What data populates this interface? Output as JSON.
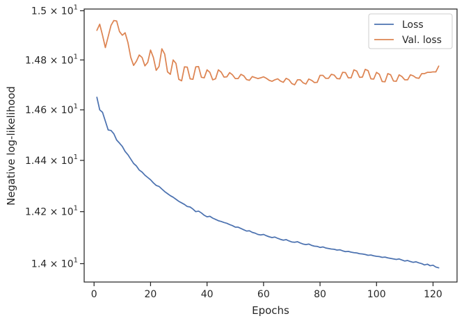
{
  "chart_data": {
    "type": "line",
    "xlabel": "Epochs",
    "ylabel": "Negative log-likelihood",
    "xlim": [
      -3.5,
      128.5
    ],
    "ylim": [
      13.93,
      15.007
    ],
    "y_scale": "log",
    "grid": false,
    "legend_position": "top-right",
    "x_ticks": [
      0,
      20,
      40,
      60,
      80,
      100,
      120
    ],
    "y_ticks": [
      {
        "value": 14.0,
        "mantissa": "1.4",
        "exponent": "1"
      },
      {
        "value": 14.2,
        "mantissa": "1.42",
        "exponent": "1"
      },
      {
        "value": 14.4,
        "mantissa": "1.44",
        "exponent": "1"
      },
      {
        "value": 14.6,
        "mantissa": "1.46",
        "exponent": "1"
      },
      {
        "value": 14.8,
        "mantissa": "1.48",
        "exponent": "1"
      },
      {
        "value": 15.0,
        "mantissa": "1.5",
        "exponent": "1"
      }
    ],
    "series": [
      {
        "name": "Loss",
        "color": "#4c72b0",
        "x": [
          1,
          2,
          3,
          4,
          5,
          6,
          7,
          8,
          9,
          10,
          11,
          12,
          13,
          14,
          15,
          16,
          17,
          18,
          19,
          20,
          21,
          22,
          23,
          24,
          25,
          26,
          27,
          28,
          29,
          30,
          31,
          32,
          33,
          34,
          35,
          36,
          37,
          38,
          39,
          40,
          41,
          42,
          43,
          44,
          45,
          46,
          47,
          48,
          49,
          50,
          51,
          52,
          53,
          54,
          55,
          56,
          57,
          58,
          59,
          60,
          61,
          62,
          63,
          64,
          65,
          66,
          67,
          68,
          69,
          70,
          71,
          72,
          73,
          74,
          75,
          76,
          77,
          78,
          79,
          80,
          81,
          82,
          83,
          84,
          85,
          86,
          87,
          88,
          89,
          90,
          91,
          92,
          93,
          94,
          95,
          96,
          97,
          98,
          99,
          100,
          101,
          102,
          103,
          104,
          105,
          106,
          107,
          108,
          109,
          110,
          111,
          112,
          113,
          114,
          115,
          116,
          117,
          118,
          119,
          120,
          121,
          122
        ],
        "values": [
          14.65,
          14.6,
          14.59,
          14.555,
          14.52,
          14.518,
          14.505,
          14.48,
          14.468,
          14.455,
          14.435,
          14.422,
          14.405,
          14.388,
          14.378,
          14.362,
          14.354,
          14.342,
          14.333,
          14.324,
          14.312,
          14.302,
          14.298,
          14.288,
          14.278,
          14.27,
          14.262,
          14.256,
          14.248,
          14.24,
          14.234,
          14.228,
          14.22,
          14.218,
          14.21,
          14.2,
          14.202,
          14.195,
          14.186,
          14.18,
          14.182,
          14.175,
          14.17,
          14.165,
          14.162,
          14.158,
          14.155,
          14.15,
          14.146,
          14.14,
          14.14,
          14.135,
          14.13,
          14.125,
          14.126,
          14.12,
          14.117,
          14.112,
          14.11,
          14.112,
          14.107,
          14.103,
          14.1,
          14.102,
          14.097,
          14.093,
          14.09,
          14.092,
          14.087,
          14.083,
          14.082,
          14.084,
          14.079,
          14.075,
          14.073,
          14.075,
          14.07,
          14.067,
          14.066,
          14.062,
          14.064,
          14.06,
          14.058,
          14.056,
          14.055,
          14.052,
          14.053,
          14.049,
          14.046,
          14.047,
          14.044,
          14.042,
          14.041,
          14.038,
          14.037,
          14.035,
          14.032,
          14.033,
          14.03,
          14.028,
          14.027,
          14.024,
          14.025,
          14.022,
          14.02,
          14.018,
          14.016,
          14.018,
          14.014,
          14.01,
          14.012,
          14.008,
          14.005,
          14.007,
          14.003,
          14.0,
          13.995,
          13.998,
          13.992,
          13.994,
          13.987,
          13.984
        ]
      },
      {
        "name": "Val. loss",
        "color": "#dd8452",
        "x": [
          1,
          2,
          3,
          4,
          5,
          6,
          7,
          8,
          9,
          10,
          11,
          12,
          13,
          14,
          15,
          16,
          17,
          18,
          19,
          20,
          21,
          22,
          23,
          24,
          25,
          26,
          27,
          28,
          29,
          30,
          31,
          32,
          33,
          34,
          35,
          36,
          37,
          38,
          39,
          40,
          41,
          42,
          43,
          44,
          45,
          46,
          47,
          48,
          49,
          50,
          51,
          52,
          53,
          54,
          55,
          56,
          57,
          58,
          59,
          60,
          61,
          62,
          63,
          64,
          65,
          66,
          67,
          68,
          69,
          70,
          71,
          72,
          73,
          74,
          75,
          76,
          77,
          78,
          79,
          80,
          81,
          82,
          83,
          84,
          85,
          86,
          87,
          88,
          89,
          90,
          91,
          92,
          93,
          94,
          95,
          96,
          97,
          98,
          99,
          100,
          101,
          102,
          103,
          104,
          105,
          106,
          107,
          108,
          109,
          110,
          111,
          112,
          113,
          114,
          115,
          116,
          117,
          118,
          119,
          120,
          121,
          122
        ],
        "values": [
          14.92,
          14.945,
          14.9,
          14.85,
          14.895,
          14.94,
          14.96,
          14.958,
          14.915,
          14.9,
          14.91,
          14.87,
          14.81,
          14.778,
          14.795,
          14.82,
          14.81,
          14.776,
          14.79,
          14.84,
          14.81,
          14.758,
          14.774,
          14.845,
          14.824,
          14.752,
          14.742,
          14.8,
          14.786,
          14.722,
          14.716,
          14.772,
          14.771,
          14.724,
          14.722,
          14.772,
          14.773,
          14.73,
          14.728,
          14.76,
          14.75,
          14.72,
          14.724,
          14.76,
          14.751,
          14.731,
          14.732,
          14.749,
          14.74,
          14.725,
          14.725,
          14.742,
          14.736,
          14.721,
          14.718,
          14.733,
          14.729,
          14.725,
          14.728,
          14.732,
          14.726,
          14.718,
          14.714,
          14.72,
          14.724,
          14.715,
          14.71,
          14.726,
          14.72,
          14.705,
          14.7,
          14.72,
          14.72,
          14.708,
          14.703,
          14.723,
          14.718,
          14.709,
          14.71,
          14.738,
          14.738,
          14.726,
          14.726,
          14.742,
          14.739,
          14.725,
          14.724,
          14.75,
          14.749,
          14.728,
          14.728,
          14.76,
          14.755,
          14.73,
          14.731,
          14.762,
          14.757,
          14.724,
          14.723,
          14.75,
          14.742,
          14.713,
          14.712,
          14.745,
          14.74,
          14.715,
          14.714,
          14.74,
          14.733,
          14.72,
          14.72,
          14.74,
          14.736,
          14.728,
          14.726,
          14.745,
          14.745,
          14.75,
          14.75,
          14.752,
          14.752,
          14.775
        ]
      }
    ]
  }
}
